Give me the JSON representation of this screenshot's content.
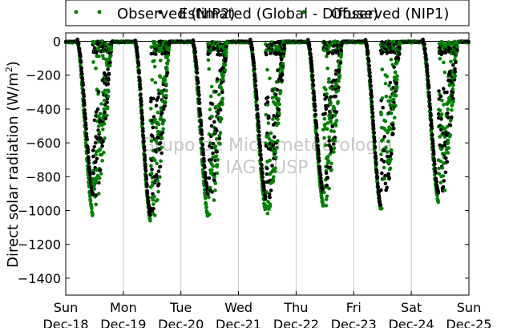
{
  "chart_data": {
    "type": "scatter",
    "ylabel": "Direct solar radiation (W/m²)",
    "ylabel_main": "Direct solar radiation (W/m",
    "ylabel_sup": "2",
    "ylabel_close": ")",
    "xlabel": "",
    "ylim": [
      -1500,
      50
    ],
    "yticks": [
      0,
      -200,
      -400,
      -600,
      -800,
      -1000,
      -1200,
      -1400
    ],
    "ytick_labels": [
      "0",
      "−200",
      "−400",
      "−600",
      "−800",
      "−1000",
      "−1200",
      "−1400"
    ],
    "xlim": [
      0,
      7
    ],
    "xticks": [
      {
        "x": 0,
        "day": "Sun",
        "date": "Dec-18"
      },
      {
        "x": 1,
        "day": "Mon",
        "date": "Dec-19"
      },
      {
        "x": 2,
        "day": "Tue",
        "date": "Dec-20"
      },
      {
        "x": 3,
        "day": "Wed",
        "date": "Dec-21"
      },
      {
        "x": 4,
        "day": "Thu",
        "date": "Dec-22"
      },
      {
        "x": 5,
        "day": "Fri",
        "date": "Dec-23"
      },
      {
        "x": 6,
        "day": "Sat",
        "date": "Dec-24"
      },
      {
        "x": 7,
        "day": "Sun",
        "date": "Dec-25"
      }
    ],
    "x_unit": "days since Sun Dec-18 00:00",
    "grid": "vertical",
    "legend_placement": "top (overlapping, above plot)",
    "legend": [
      "Observed (NIP2)",
      "Estimated (Global - Diffuse)",
      "Observed (NIP1)"
    ],
    "watermark": [
      "Grupo de Micrometeorologia",
      "IAG / USP"
    ],
    "series": [
      {
        "name": "Observed (NIP2)",
        "color": "#008000",
        "style": "dots"
      },
      {
        "name": "Estimated (Global - Diffuse)",
        "color": "#000000",
        "style": "dots"
      },
      {
        "name": "Observed (NIP1)",
        "color": "#008000",
        "style": "dots"
      }
    ],
    "daily_profile": {
      "sunrise_frac": 0.2,
      "sunset_frac": 0.8,
      "green_min": [
        -1050,
        -1085,
        -1060,
        -1020,
        -990,
        -1015,
        -970
      ],
      "black_min": [
        -930,
        -1060,
        -920,
        -950,
        -920,
        -1000,
        -920
      ],
      "afternoon_cloudy": [
        true,
        true,
        true,
        true,
        true,
        true,
        true
      ]
    }
  }
}
